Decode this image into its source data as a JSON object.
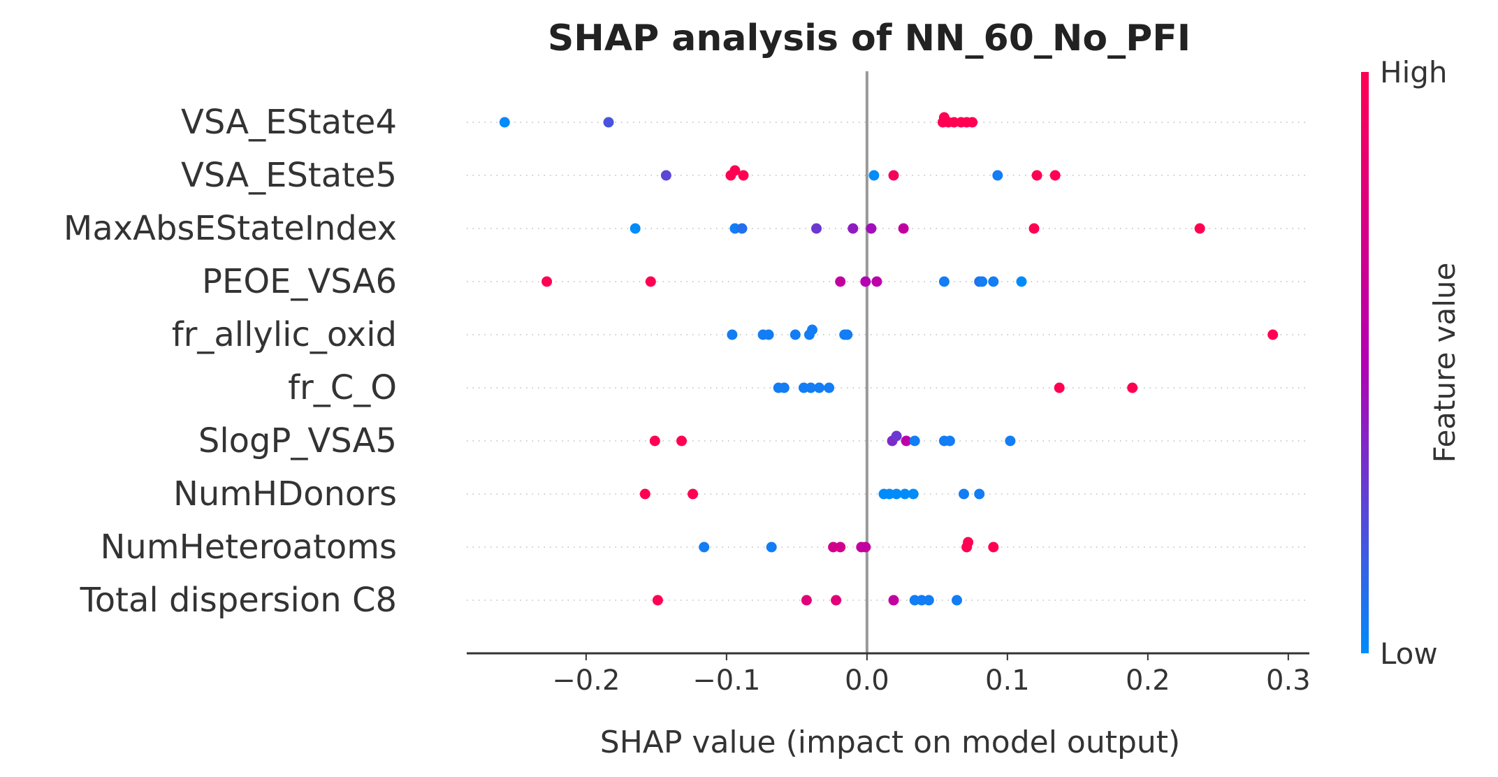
{
  "chart_data": {
    "type": "scatter",
    "title": "SHAP analysis of NN_60_No_PFI",
    "xlabel": "SHAP value (impact on model output)",
    "xlim": [
      -0.285,
      0.315
    ],
    "xticks": [
      -0.2,
      -0.1,
      0.0,
      0.1,
      0.2,
      0.3
    ],
    "xtick_labels": [
      "−0.2",
      "−0.1",
      "0.0",
      "0.1",
      "0.2",
      "0.3"
    ],
    "grid": false,
    "colorbar": {
      "label": "Feature value",
      "high_label": "High",
      "low_label": "Low",
      "low_color": "#008bfb",
      "high_color": "#ff0052"
    },
    "features": [
      {
        "name": "VSA_EState4",
        "points": [
          [
            -0.258,
            0.0
          ],
          [
            -0.184,
            0.2
          ],
          [
            0.054,
            1.0
          ],
          [
            0.055,
            1.0
          ],
          [
            0.058,
            1.0
          ],
          [
            0.062,
            1.0
          ],
          [
            0.067,
            1.0
          ],
          [
            0.071,
            1.0
          ],
          [
            0.075,
            1.0
          ]
        ]
      },
      {
        "name": "VSA_EState5",
        "points": [
          [
            -0.143,
            0.25
          ],
          [
            -0.097,
            1.0
          ],
          [
            -0.094,
            1.0
          ],
          [
            -0.088,
            1.0
          ],
          [
            0.005,
            0.0
          ],
          [
            0.019,
            0.95
          ],
          [
            0.093,
            0.05
          ],
          [
            0.121,
            1.0
          ],
          [
            0.134,
            1.0
          ]
        ]
      },
      {
        "name": "MaxAbsEStateIndex",
        "points": [
          [
            -0.165,
            0.0
          ],
          [
            -0.094,
            0.05
          ],
          [
            -0.089,
            0.1
          ],
          [
            -0.036,
            0.3
          ],
          [
            -0.01,
            0.4
          ],
          [
            0.003,
            0.45
          ],
          [
            0.026,
            0.6
          ],
          [
            0.119,
            1.0
          ],
          [
            0.237,
            1.0
          ]
        ]
      },
      {
        "name": "PEOE_VSA6",
        "points": [
          [
            -0.228,
            1.0
          ],
          [
            -0.154,
            1.0
          ],
          [
            -0.019,
            0.6
          ],
          [
            -0.001,
            0.5
          ],
          [
            0.007,
            0.55
          ],
          [
            0.055,
            0.05
          ],
          [
            0.08,
            0.1
          ],
          [
            0.082,
            0.05
          ],
          [
            0.09,
            0.05
          ],
          [
            0.11,
            0.0
          ]
        ]
      },
      {
        "name": "fr_allylic_oxid",
        "points": [
          [
            -0.096,
            0.05
          ],
          [
            -0.074,
            0.05
          ],
          [
            -0.07,
            0.05
          ],
          [
            -0.051,
            0.05
          ],
          [
            -0.041,
            0.05
          ],
          [
            -0.039,
            0.05
          ],
          [
            -0.016,
            0.05
          ],
          [
            -0.014,
            0.05
          ],
          [
            0.289,
            1.0
          ]
        ]
      },
      {
        "name": "fr_C_O",
        "points": [
          [
            -0.063,
            0.05
          ],
          [
            -0.059,
            0.05
          ],
          [
            -0.045,
            0.05
          ],
          [
            -0.04,
            0.05
          ],
          [
            -0.034,
            0.05
          ],
          [
            -0.027,
            0.05
          ],
          [
            0.137,
            1.0
          ],
          [
            0.189,
            1.0
          ]
        ]
      },
      {
        "name": "SlogP_VSA5",
        "points": [
          [
            -0.151,
            1.0
          ],
          [
            -0.132,
            1.0
          ],
          [
            0.018,
            0.35
          ],
          [
            0.021,
            0.3
          ],
          [
            0.028,
            0.55
          ],
          [
            0.034,
            0.05
          ],
          [
            0.055,
            0.05
          ],
          [
            0.059,
            0.05
          ],
          [
            0.102,
            0.05
          ]
        ]
      },
      {
        "name": "NumHDonors",
        "points": [
          [
            -0.158,
            1.0
          ],
          [
            -0.124,
            1.0
          ],
          [
            0.012,
            0.0
          ],
          [
            0.016,
            0.0
          ],
          [
            0.021,
            0.0
          ],
          [
            0.027,
            0.0
          ],
          [
            0.033,
            0.0
          ],
          [
            0.069,
            0.05
          ],
          [
            0.08,
            0.05
          ]
        ]
      },
      {
        "name": "NumHeteroatoms",
        "points": [
          [
            -0.116,
            0.05
          ],
          [
            -0.068,
            0.05
          ],
          [
            -0.024,
            0.7
          ],
          [
            -0.019,
            0.7
          ],
          [
            -0.004,
            0.6
          ],
          [
            -0.001,
            0.6
          ],
          [
            0.071,
            1.0
          ],
          [
            0.072,
            1.0
          ],
          [
            0.09,
            1.0
          ]
        ]
      },
      {
        "name": "Total dispersion C8",
        "points": [
          [
            -0.149,
            1.0
          ],
          [
            -0.043,
            0.8
          ],
          [
            -0.022,
            0.8
          ],
          [
            0.019,
            0.6
          ],
          [
            0.034,
            0.05
          ],
          [
            0.039,
            0.05
          ],
          [
            0.044,
            0.05
          ],
          [
            0.064,
            0.05
          ]
        ]
      }
    ]
  }
}
